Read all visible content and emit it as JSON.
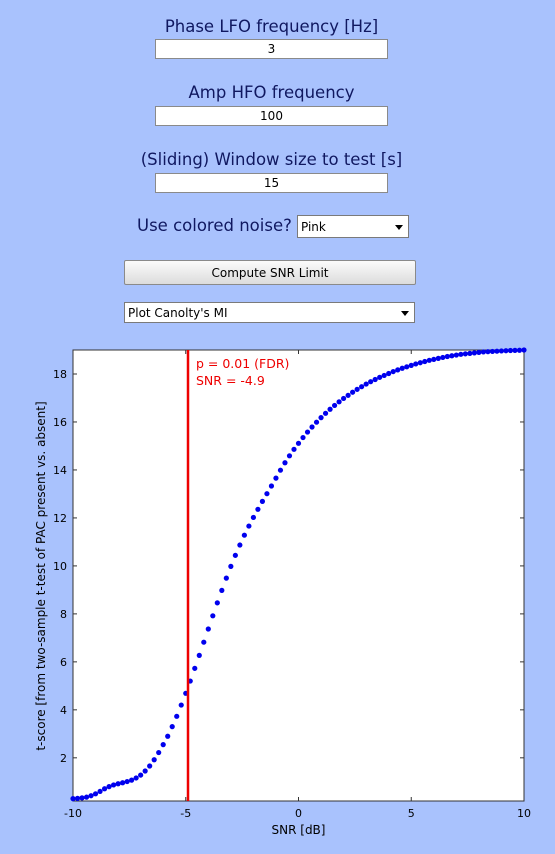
{
  "controls": {
    "phase_label": "Phase LFO frequency [Hz]",
    "phase_value": "3",
    "amp_label": "Amp HFO frequency",
    "amp_value": "100",
    "window_label": "(Sliding) Window size to test [s]",
    "window_value": "15",
    "noise_label": "Use colored noise?",
    "noise_value": "Pink",
    "compute_label": "Compute SNR Limit",
    "plot_value": "Plot Canolty's MI"
  },
  "chart_data": {
    "type": "scatter",
    "xlabel": "SNR [dB]",
    "ylabel": "t-score [from two-sample t-test of PAC present vs. absent]",
    "xlim": [
      -10,
      10
    ],
    "ylim": [
      0.2,
      19
    ],
    "xticks": [
      -10,
      -5,
      0,
      5,
      10
    ],
    "yticks": [
      2,
      4,
      6,
      8,
      10,
      12,
      14,
      16,
      18
    ],
    "grid": false,
    "marker_color": "#0000ee",
    "threshold_color": "#ee0000",
    "threshold_x": -4.9,
    "annotations": [
      "p = 0.01 (FDR)",
      "SNR = -4.9"
    ],
    "x": [
      -10,
      -9.8,
      -9.6,
      -9.4,
      -9.2,
      -9,
      -8.8,
      -8.6,
      -8.4,
      -8.2,
      -8,
      -7.8,
      -7.6,
      -7.4,
      -7.2,
      -7,
      -6.8,
      -6.6,
      -6.4,
      -6.2,
      -6,
      -5.8,
      -5.6,
      -5.4,
      -5.2,
      -5,
      -4.8,
      -4.6,
      -4.4,
      -4.2,
      -4,
      -3.8,
      -3.6,
      -3.4,
      -3.2,
      -3,
      -2.8,
      -2.6,
      -2.4,
      -2.2,
      -2,
      -1.8,
      -1.6,
      -1.4,
      -1.2,
      -1,
      -0.8,
      -0.6,
      -0.4,
      -0.2,
      0,
      0.2,
      0.4,
      0.6,
      0.8,
      1,
      1.2,
      1.4,
      1.6,
      1.8,
      2,
      2.2,
      2.4,
      2.6,
      2.8,
      3,
      3.2,
      3.4,
      3.6,
      3.8,
      4,
      4.2,
      4.4,
      4.6,
      4.8,
      5,
      5.2,
      5.4,
      5.6,
      5.8,
      6,
      6.2,
      6.4,
      6.6,
      6.8,
      7,
      7.2,
      7.4,
      7.6,
      7.8,
      8,
      8.2,
      8.4,
      8.6,
      8.8,
      9,
      9.2,
      9.4,
      9.6,
      9.8,
      10
    ],
    "y": [
      0.3,
      0.31,
      0.33,
      0.36,
      0.42,
      0.5,
      0.6,
      0.71,
      0.8,
      0.87,
      0.92,
      0.96,
      1.01,
      1.07,
      1.16,
      1.28,
      1.45,
      1.66,
      1.92,
      2.22,
      2.55,
      2.9,
      3.3,
      3.73,
      4.2,
      4.69,
      5.2,
      5.73,
      6.27,
      6.82,
      7.37,
      7.92,
      8.46,
      8.98,
      9.49,
      9.98,
      10.44,
      10.87,
      11.28,
      11.66,
      12.02,
      12.36,
      12.69,
      13.01,
      13.33,
      13.66,
      13.99,
      14.3,
      14.59,
      14.86,
      15.11,
      15.35,
      15.58,
      15.79,
      15.99,
      16.18,
      16.36,
      16.53,
      16.69,
      16.84,
      16.98,
      17.11,
      17.24,
      17.36,
      17.47,
      17.58,
      17.68,
      17.77,
      17.86,
      17.94,
      18.02,
      18.1,
      18.17,
      18.24,
      18.3,
      18.36,
      18.42,
      18.47,
      18.52,
      18.57,
      18.61,
      18.65,
      18.69,
      18.73,
      18.76,
      18.79,
      18.82,
      18.84,
      18.86,
      18.88,
      18.9,
      18.92,
      18.93,
      18.94,
      18.95,
      18.96,
      18.97,
      18.98,
      18.985,
      18.99,
      19.0
    ]
  }
}
